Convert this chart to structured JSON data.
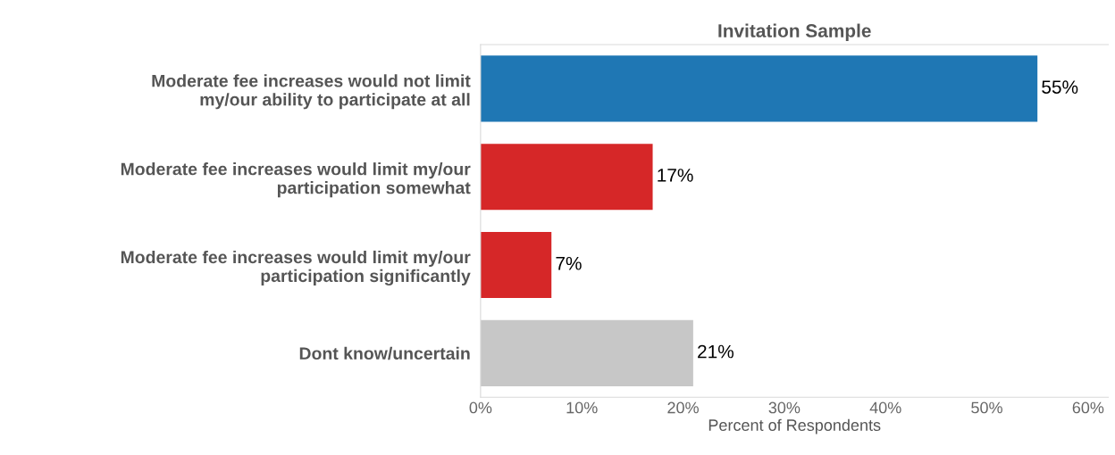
{
  "chart_data": {
    "type": "bar",
    "orientation": "horizontal",
    "title": "Invitation Sample",
    "xlabel": "Percent of Respondents",
    "categories": [
      "Moderate fee increases would not limit\nmy/our ability to participate at all",
      "Moderate fee increases would limit my/our\nparticipation somewhat",
      "Moderate fee increases would limit my/our\nparticipation significantly",
      "Dont know/uncertain"
    ],
    "values": [
      55,
      17,
      7,
      21
    ],
    "colors": [
      "#1f77b4",
      "#d62728",
      "#d62728",
      "#c7c7c7"
    ],
    "value_labels": [
      "55%",
      "17%",
      "7%",
      "21%"
    ],
    "xlim": [
      0,
      62
    ],
    "xticks": [
      {
        "value": 0,
        "label": "0%"
      },
      {
        "value": 10,
        "label": "10%"
      },
      {
        "value": 20,
        "label": "20%"
      },
      {
        "value": 30,
        "label": "30%"
      },
      {
        "value": 40,
        "label": "40%"
      },
      {
        "value": 50,
        "label": "50%"
      },
      {
        "value": 60,
        "label": "60%"
      }
    ],
    "grid": false,
    "legend": false
  }
}
